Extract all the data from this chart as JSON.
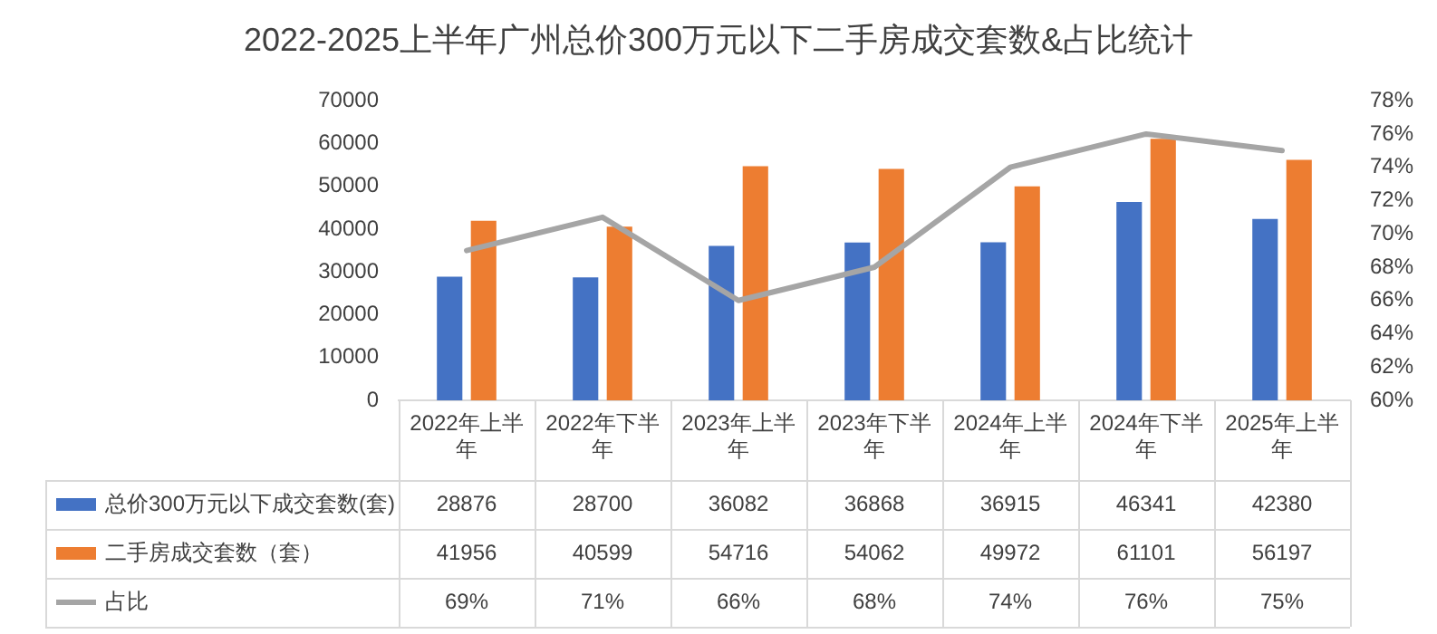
{
  "chart_data": {
    "type": "bar",
    "title": "2022-2025上半年广州总价300万元以下二手房成交套数&占比统计",
    "categories": [
      "2022年上半年",
      "2022年下半年",
      "2023年上半年",
      "2023年下半年",
      "2024年上半年",
      "2024年下半年",
      "2025年上半年"
    ],
    "series": [
      {
        "name": "总价300万元以下成交套数(套)",
        "color": "#4472c4",
        "values": [
          28876,
          28700,
          36082,
          36868,
          36915,
          46341,
          42380
        ]
      },
      {
        "name": "二手房成交套数（套）",
        "color": "#ed7d31",
        "values": [
          41956,
          40599,
          54716,
          54062,
          49972,
          61101,
          56197
        ]
      },
      {
        "name": "占比",
        "type": "line",
        "axis": "y2",
        "color": "#a5a5a5",
        "values": [
          69,
          71,
          66,
          68,
          74,
          76,
          75
        ],
        "value_labels": [
          "69%",
          "71%",
          "66%",
          "68%",
          "74%",
          "76%",
          "75%"
        ]
      }
    ],
    "ylim": [
      0,
      70000
    ],
    "yticks": [
      0,
      10000,
      20000,
      30000,
      40000,
      50000,
      60000,
      70000
    ],
    "y2lim": [
      60,
      78
    ],
    "y2ticks": [
      {
        "value": 60,
        "label": "60%"
      },
      {
        "value": 62,
        "label": "62%"
      },
      {
        "value": 64,
        "label": "64%"
      },
      {
        "value": 66,
        "label": "66%"
      },
      {
        "value": 68,
        "label": "68%"
      },
      {
        "value": 70,
        "label": "70%"
      },
      {
        "value": 72,
        "label": "72%"
      },
      {
        "value": 74,
        "label": "74%"
      },
      {
        "value": 76,
        "label": "76%"
      },
      {
        "value": 78,
        "label": "78%"
      }
    ],
    "data_labels": true,
    "legend": "bottom",
    "grid": false,
    "marker": "none"
  }
}
